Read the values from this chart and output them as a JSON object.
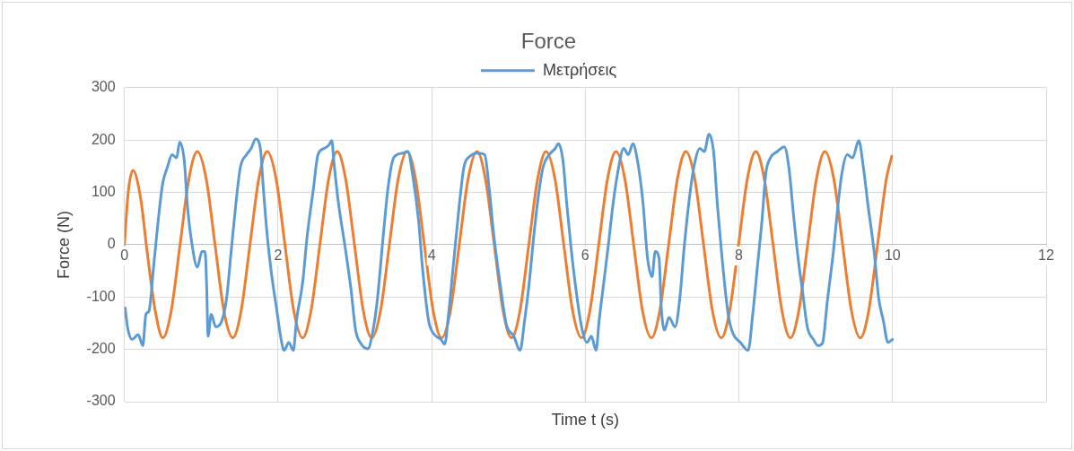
{
  "chart_data": {
    "type": "line",
    "title": "Force",
    "xlabel": "Time t (s)",
    "ylabel": "Force (N)",
    "xlim": [
      0,
      12
    ],
    "xticks": [
      0,
      2,
      4,
      6,
      8,
      10,
      12
    ],
    "ylim": [
      -300,
      300
    ],
    "yticks": [
      -300,
      -200,
      -100,
      0,
      100,
      200,
      300
    ],
    "grid": true,
    "legend": "top",
    "marker": "none",
    "line_style": "solid",
    "series": [
      {
        "name": "Μετρήσεις",
        "color": "#5b9bd5",
        "x": [
          0.01,
          0.04,
          0.1,
          0.18,
          0.24,
          0.28,
          0.32,
          0.38,
          0.44,
          0.5,
          0.56,
          0.62,
          0.68,
          0.72,
          0.78,
          0.82,
          0.87,
          0.95,
          1.01,
          1.05,
          1.07,
          1.09,
          1.13,
          1.19,
          1.27,
          1.33,
          1.39,
          1.45,
          1.51,
          1.59,
          1.65,
          1.71,
          1.77,
          1.81,
          1.86,
          1.92,
          1.98,
          2.04,
          2.08,
          2.14,
          2.2,
          2.24,
          2.32,
          2.38,
          2.46,
          2.52,
          2.6,
          2.66,
          2.7,
          2.73,
          2.79,
          2.87,
          2.95,
          3.01,
          3.07,
          3.17,
          3.23,
          3.29,
          3.37,
          3.43,
          3.49,
          3.55,
          3.63,
          3.69,
          3.75,
          3.83,
          3.88,
          3.96,
          4.02,
          4.12,
          4.17,
          4.22,
          4.28,
          4.36,
          4.42,
          4.5,
          4.6,
          4.69,
          4.75,
          4.81,
          4.89,
          4.97,
          5.07,
          5.15,
          5.21,
          5.27,
          5.33,
          5.39,
          5.45,
          5.53,
          5.61,
          5.65,
          5.71,
          5.76,
          5.82,
          5.9,
          5.96,
          6.02,
          6.08,
          6.14,
          6.18,
          6.24,
          6.3,
          6.36,
          6.42,
          6.5,
          6.56,
          6.62,
          6.68,
          6.75,
          6.81,
          6.87,
          6.91,
          6.96,
          6.99,
          7.03,
          7.09,
          7.17,
          7.23,
          7.29,
          7.37,
          7.43,
          7.49,
          7.55,
          7.61,
          7.67,
          7.72,
          7.78,
          7.86,
          7.92,
          8.02,
          8.12,
          8.18,
          8.24,
          8.3,
          8.35,
          8.41,
          8.5,
          8.59,
          8.65,
          8.71,
          8.77,
          8.83,
          8.89,
          8.97,
          9.03,
          9.09,
          9.15,
          9.23,
          9.29,
          9.34,
          9.41,
          9.48,
          9.56,
          9.62,
          9.68,
          9.76,
          9.82,
          9.88,
          9.94,
          10.0
        ],
        "values": [
          -121,
          -157,
          -181,
          -172,
          -193,
          -133,
          -127,
          -43,
          46,
          118,
          148,
          172,
          166,
          196,
          160,
          76,
          11,
          -43,
          -13,
          -13,
          -73,
          -175,
          -133,
          -157,
          -145,
          -103,
          -13,
          76,
          148,
          172,
          184,
          202,
          184,
          106,
          17,
          -61,
          -121,
          -181,
          -202,
          -187,
          -202,
          -145,
          -73,
          17,
          106,
          172,
          184,
          190,
          199,
          154,
          76,
          -1,
          -85,
          -163,
          -187,
          -199,
          -169,
          -109,
          17,
          106,
          160,
          172,
          175,
          178,
          136,
          46,
          -43,
          -145,
          -169,
          -181,
          -190,
          -133,
          -43,
          76,
          148,
          169,
          175,
          172,
          106,
          17,
          -73,
          -151,
          -175,
          -202,
          -145,
          -73,
          17,
          94,
          148,
          172,
          184,
          193,
          160,
          76,
          -13,
          -109,
          -163,
          -187,
          -175,
          -202,
          -145,
          -73,
          -1,
          76,
          136,
          184,
          172,
          193,
          160,
          82,
          -25,
          -61,
          -13,
          -25,
          -121,
          -163,
          -139,
          -157,
          -103,
          -1,
          106,
          160,
          184,
          178,
          211,
          178,
          76,
          -25,
          -133,
          -169,
          -187,
          -202,
          -133,
          -43,
          46,
          136,
          166,
          178,
          187,
          148,
          58,
          -25,
          -91,
          -157,
          -181,
          -193,
          -187,
          -109,
          -13,
          76,
          136,
          172,
          166,
          199,
          148,
          76,
          -13,
          -103,
          -145,
          -187,
          -181
        ]
      },
      {
        "color": "#ed7d31",
        "x": [
          0,
          0.05,
          0.11,
          0.21,
          0.3,
          0.4,
          0.5,
          0.61,
          0.725,
          0.84,
          0.95,
          1.065,
          1.18,
          1.295,
          1.41,
          1.52,
          1.635,
          1.75,
          1.86,
          1.975,
          2.09,
          2.205,
          2.32,
          2.43,
          2.545,
          2.66,
          2.77,
          2.88,
          2.995,
          3.11,
          3.22,
          3.335,
          3.45,
          3.565,
          3.68,
          3.79,
          3.905,
          4.02,
          4.13,
          4.245,
          4.36,
          4.475,
          4.59,
          4.7,
          4.815,
          4.93,
          5.04,
          5.15,
          5.265,
          5.38,
          5.49,
          5.605,
          5.72,
          5.835,
          5.95,
          6.06,
          6.175,
          6.29,
          6.4,
          6.515,
          6.63,
          6.745,
          6.86,
          6.97,
          7.085,
          7.2,
          7.31,
          7.425,
          7.54,
          7.655,
          7.77,
          7.88,
          7.995,
          8.11,
          8.22,
          8.33,
          8.445,
          8.56,
          8.67,
          8.78,
          8.895,
          9.01,
          9.12,
          9.235,
          9.35,
          9.465,
          9.58,
          9.69,
          9.805,
          9.92,
          9.99
        ],
        "values": [
          0,
          100,
          142,
          90,
          -18,
          -125,
          -178,
          -126,
          0,
          126,
          178,
          126,
          0,
          -126,
          -178,
          -126,
          0,
          126,
          178,
          126,
          0,
          -126,
          -178,
          -126,
          0,
          126,
          178,
          126,
          0,
          -126,
          -178,
          -126,
          0,
          126,
          178,
          126,
          0,
          -126,
          -178,
          -126,
          0,
          126,
          178,
          126,
          0,
          -126,
          -178,
          -126,
          0,
          126,
          178,
          126,
          0,
          -126,
          -178,
          -126,
          0,
          126,
          178,
          126,
          0,
          -126,
          -178,
          -126,
          0,
          126,
          178,
          126,
          0,
          -126,
          -178,
          -126,
          0,
          126,
          178,
          126,
          0,
          -126,
          -178,
          -126,
          0,
          126,
          178,
          126,
          0,
          -126,
          -178,
          -126,
          0,
          126,
          169
        ]
      }
    ]
  }
}
